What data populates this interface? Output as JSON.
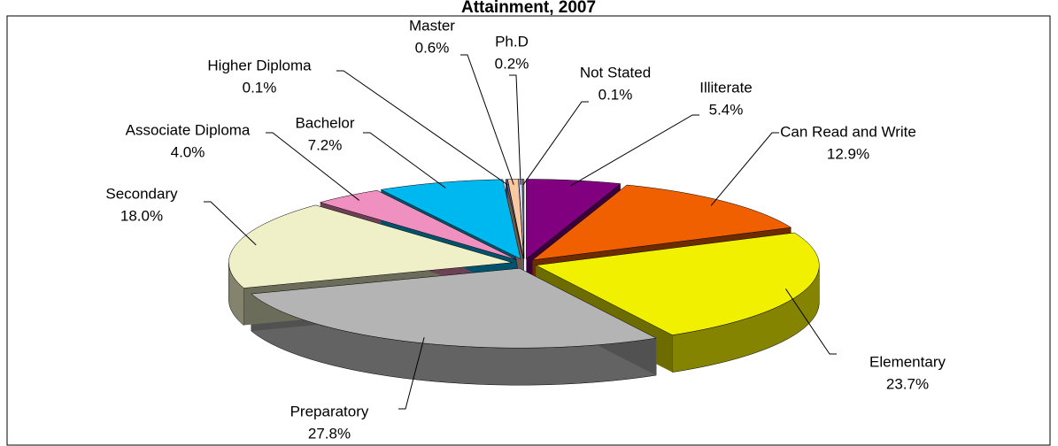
{
  "chart_data": {
    "type": "pie",
    "title": "Attainment, 2007",
    "categories": [
      "Illiterate",
      "Can Read and Write",
      "Elementary",
      "Preparatory",
      "Secondary",
      "Associate Diploma",
      "Bachelor",
      "Higher Diploma",
      "Master",
      "Ph.D",
      "Not Stated"
    ],
    "values": [
      5.4,
      12.9,
      23.7,
      27.8,
      18.0,
      4.0,
      7.2,
      0.1,
      0.6,
      0.2,
      0.1
    ],
    "value_labels": [
      "5.4%",
      "12.9%",
      "23.7%",
      "27.8%",
      "18.0%",
      "4.0%",
      "7.2%",
      "0.1%",
      "0.6%",
      "0.2%",
      "0.1%"
    ],
    "colors": [
      "#800080",
      "#f06000",
      "#f0f000",
      "#b4b4b4",
      "#f0f0c8",
      "#f090c0",
      "#00b8f0",
      "#6060a0",
      "#f8c8a0",
      "#d0d0ff",
      "#808080"
    ]
  }
}
